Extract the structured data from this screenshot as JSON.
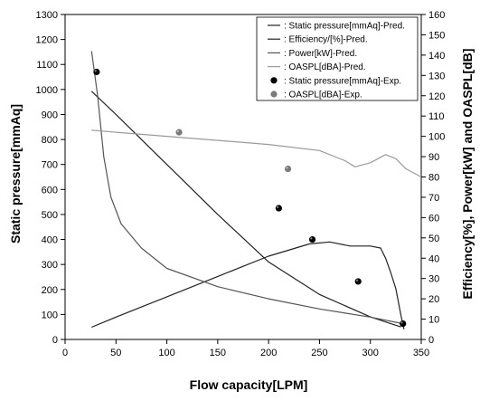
{
  "chart_data": {
    "type": "line",
    "xlabel": "Flow capacity[LPM]",
    "ylabel": "Static pressure[mmAq]",
    "y2label": "Efficiency[%], Power[kW] and OASPL[dB]",
    "xlim": [
      0,
      350
    ],
    "ylim": [
      0,
      1300
    ],
    "y2lim": [
      0,
      160
    ],
    "xticks": [
      0,
      50,
      100,
      150,
      200,
      250,
      300,
      350
    ],
    "yticks": [
      0,
      100,
      200,
      300,
      400,
      500,
      600,
      700,
      800,
      900,
      1000,
      1100,
      1200,
      1300
    ],
    "y2ticks": [
      0,
      10,
      20,
      30,
      40,
      50,
      60,
      70,
      80,
      90,
      100,
      110,
      120,
      130,
      140,
      150,
      160
    ],
    "grid": false,
    "legend_position": "top-right",
    "series": [
      {
        "name": ": Static pressure[mmAq]-Pred.",
        "axis": "left",
        "style": "line",
        "color": "#222222",
        "x": [
          26,
          50,
          100,
          150,
          200,
          250,
          300,
          330
        ],
        "y": [
          993,
          900,
          700,
          500,
          310,
          180,
          90,
          50
        ]
      },
      {
        "name": ": Efficiency/[%]-Pred.",
        "axis": "right",
        "style": "line",
        "color": "#222222",
        "x": [
          26,
          50,
          100,
          150,
          200,
          240,
          260,
          280,
          300,
          310,
          315,
          320,
          325,
          330,
          333
        ],
        "y": [
          6,
          11,
          21,
          31,
          41,
          47,
          48,
          46,
          46,
          45,
          40,
          33,
          25,
          12,
          5
        ]
      },
      {
        "name": ": Power[kW]-Pred.",
        "axis": "right",
        "style": "line",
        "color": "#555555",
        "x": [
          26,
          32,
          38,
          45,
          55,
          75,
          100,
          150,
          200,
          250,
          300,
          330
        ],
        "y": [
          142,
          120,
          90,
          70,
          57,
          45,
          35,
          26,
          20,
          15,
          11,
          8
        ]
      },
      {
        "name": ": OASPL[dBA]-Pred.",
        "axis": "right",
        "style": "line",
        "color": "#9a9a9a",
        "x": [
          26,
          50,
          100,
          150,
          200,
          250,
          275,
          285,
          300,
          315,
          325,
          335,
          350
        ],
        "y": [
          103,
          102,
          100,
          98,
          96,
          93,
          88,
          85,
          87,
          91,
          89,
          84,
          80
        ]
      },
      {
        "name": ": Static pressure[mmAq]-Exp.",
        "axis": "left",
        "style": "marker",
        "color": "#000000",
        "x": [
          31,
          210,
          243,
          288,
          332
        ],
        "y": [
          1070,
          525,
          400,
          232,
          63
        ]
      },
      {
        "name": ": OASPL[dBA]-Exp.",
        "axis": "right",
        "style": "marker",
        "color": "#7a7a7a",
        "x": [
          112,
          219
        ],
        "y": [
          102,
          84
        ]
      }
    ]
  }
}
